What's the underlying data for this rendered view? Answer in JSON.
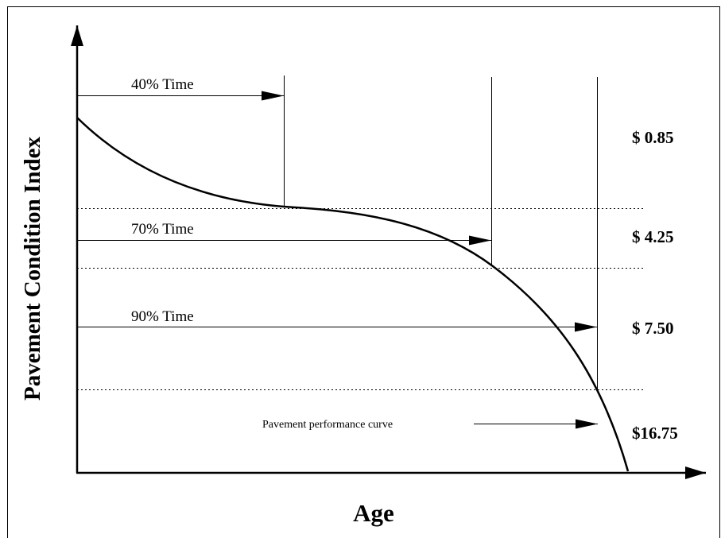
{
  "y_axis_label": "Pavement Condition Index",
  "x_axis_label": "Age",
  "time_labels": [
    "40% Time",
    "70% Time",
    "90% Time"
  ],
  "costs": [
    "$ 0.85",
    "$ 4.25",
    "$ 7.50",
    "$16.75"
  ],
  "curve_label": "Pavement performance curve"
}
